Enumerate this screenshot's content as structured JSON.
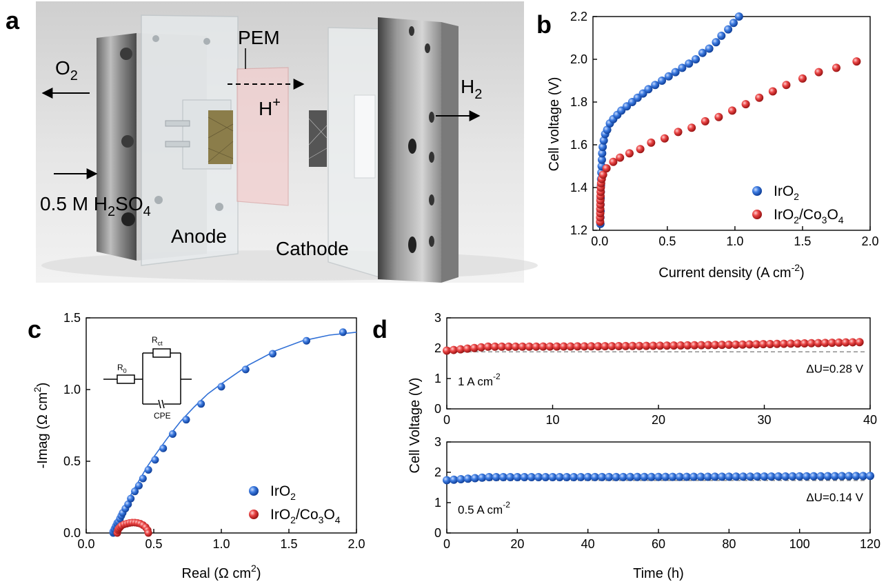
{
  "colors": {
    "blue": "#2f6fd6",
    "red": "#e53a3a",
    "dash": "#777777",
    "axis": "#000000"
  },
  "panel_a": {
    "letter": "a",
    "labels": {
      "o2": "O",
      "o2_sub": "2",
      "pem": "PEM",
      "h_plus": "H",
      "h_plus_sup": "+",
      "h2": "H",
      "h2_sub": "2",
      "electrolyte_pre": "0.5 M H",
      "electrolyte_sub1": "2",
      "electrolyte_mid": "SO",
      "electrolyte_sub2": "4",
      "anode": "Anode",
      "cathode": "Cathode"
    }
  },
  "chart_data": [
    {
      "panel": "b",
      "type": "scatter",
      "xlabel": "Current density (A cm",
      "xlabel_sup": "-2",
      "xlabel_end": ")",
      "ylabel": "Cell voltage (V)",
      "xlim": [
        -0.05,
        2.0
      ],
      "ylim": [
        1.2,
        2.2
      ],
      "xticks": [
        "0.0",
        "0.5",
        "1.0",
        "1.5",
        "2.0"
      ],
      "xtick_values": [
        0,
        0.5,
        1.0,
        1.5,
        2.0
      ],
      "yticks": [
        "1.2",
        "1.4",
        "1.6",
        "1.8",
        "2.0",
        "2.2"
      ],
      "ytick_values": [
        1.2,
        1.4,
        1.6,
        1.8,
        2.0,
        2.2
      ],
      "legend_position": "bottom-right",
      "series": [
        {
          "name": "IrO",
          "name_parts": [
            [
              "IrO",
              ""
            ],
            [
              "2",
              "sub"
            ]
          ],
          "color": "blue",
          "x": [
            0.005,
            0.005,
            0.006,
            0.006,
            0.007,
            0.008,
            0.009,
            0.01,
            0.012,
            0.014,
            0.016,
            0.018,
            0.022,
            0.03,
            0.04,
            0.055,
            0.075,
            0.1,
            0.13,
            0.16,
            0.2,
            0.24,
            0.28,
            0.32,
            0.36,
            0.41,
            0.46,
            0.51,
            0.56,
            0.61,
            0.66,
            0.71,
            0.76,
            0.81,
            0.86,
            0.9,
            0.95,
            0.99,
            1.03
          ],
          "y": [
            1.23,
            1.26,
            1.29,
            1.32,
            1.35,
            1.38,
            1.41,
            1.44,
            1.47,
            1.5,
            1.53,
            1.56,
            1.59,
            1.62,
            1.65,
            1.67,
            1.7,
            1.72,
            1.74,
            1.76,
            1.78,
            1.8,
            1.82,
            1.84,
            1.86,
            1.88,
            1.9,
            1.92,
            1.94,
            1.96,
            1.98,
            2.0,
            2.03,
            2.05,
            2.08,
            2.11,
            2.14,
            2.17,
            2.2
          ]
        },
        {
          "name": "IrO/CoO",
          "name_parts": [
            [
              "IrO",
              ""
            ],
            [
              "2",
              "sub"
            ],
            [
              "/Co",
              ""
            ],
            [
              "3",
              "sub"
            ],
            [
              "O",
              ""
            ],
            [
              "4",
              "sub"
            ]
          ],
          "color": "red",
          "x": [
            0.003,
            0.003,
            0.004,
            0.004,
            0.005,
            0.005,
            0.006,
            0.007,
            0.008,
            0.01,
            0.015,
            0.025,
            0.05,
            0.1,
            0.15,
            0.22,
            0.3,
            0.38,
            0.48,
            0.58,
            0.68,
            0.78,
            0.88,
            0.98,
            1.08,
            1.18,
            1.28,
            1.38,
            1.5,
            1.62,
            1.75,
            1.9
          ],
          "y": [
            1.24,
            1.26,
            1.28,
            1.3,
            1.32,
            1.34,
            1.36,
            1.38,
            1.4,
            1.42,
            1.44,
            1.46,
            1.49,
            1.52,
            1.54,
            1.56,
            1.58,
            1.61,
            1.63,
            1.66,
            1.68,
            1.71,
            1.73,
            1.76,
            1.79,
            1.82,
            1.85,
            1.88,
            1.91,
            1.94,
            1.96,
            1.99
          ]
        }
      ]
    },
    {
      "panel": "c",
      "type": "scatter",
      "xlabel": "Real (Ω cm",
      "xlabel_sup": "2",
      "xlabel_end": ")",
      "ylabel": "-Imag (Ω cm",
      "ylabel_sup": "2",
      "ylabel_end": ")",
      "xlim": [
        0.0,
        2.0
      ],
      "ylim": [
        0.0,
        1.5
      ],
      "xticks": [
        "0.0",
        "0.5",
        "1.0",
        "1.5",
        "2.0"
      ],
      "xtick_values": [
        0,
        0.5,
        1.0,
        1.5,
        2.0
      ],
      "yticks": [
        "0.0",
        "0.5",
        "1.0",
        "1.5"
      ],
      "ytick_values": [
        0,
        0.5,
        1.0,
        1.5
      ],
      "legend_position": "bottom-right",
      "inset": {
        "r0": "R",
        "r0_sub": "0",
        "rct": "R",
        "rct_sub": "ct",
        "cpe": "CPE"
      },
      "series": [
        {
          "name": "IrO",
          "name_parts": [
            [
              "IrO",
              ""
            ],
            [
              "2",
              "sub"
            ]
          ],
          "color": "blue",
          "fit_line": true,
          "fit_x": [
            0.2,
            0.22,
            0.25,
            0.3,
            0.35,
            0.4,
            0.45,
            0.5,
            0.6,
            0.7,
            0.8,
            0.9,
            1.0,
            1.2,
            1.4,
            1.6,
            1.8,
            2.0
          ],
          "fit_y": [
            0.0,
            0.06,
            0.12,
            0.21,
            0.3,
            0.38,
            0.46,
            0.53,
            0.66,
            0.78,
            0.88,
            0.97,
            1.04,
            1.17,
            1.27,
            1.34,
            1.38,
            1.4
          ],
          "x": [
            0.2,
            0.2,
            0.21,
            0.21,
            0.22,
            0.22,
            0.23,
            0.23,
            0.24,
            0.25,
            0.26,
            0.27,
            0.29,
            0.31,
            0.33,
            0.36,
            0.39,
            0.42,
            0.46,
            0.51,
            0.57,
            0.64,
            0.74,
            0.85,
            1.0,
            1.18,
            1.38,
            1.63,
            1.9
          ],
          "y": [
            0.0,
            0.01,
            0.02,
            0.03,
            0.04,
            0.05,
            0.06,
            0.07,
            0.08,
            0.1,
            0.12,
            0.14,
            0.17,
            0.2,
            0.24,
            0.29,
            0.33,
            0.38,
            0.44,
            0.51,
            0.59,
            0.69,
            0.79,
            0.9,
            1.02,
            1.14,
            1.25,
            1.34,
            1.4
          ]
        },
        {
          "name": "IrO/CoO",
          "name_parts": [
            [
              "IrO",
              ""
            ],
            [
              "2",
              "sub"
            ],
            [
              "/Co",
              ""
            ],
            [
              "3",
              "sub"
            ],
            [
              "O",
              ""
            ],
            [
              "4",
              "sub"
            ]
          ],
          "color": "red",
          "x": [
            0.23,
            0.235,
            0.24,
            0.25,
            0.26,
            0.28,
            0.3,
            0.32,
            0.34,
            0.36,
            0.38,
            0.4,
            0.42,
            0.44,
            0.455,
            0.46
          ],
          "y": [
            0.0,
            0.02,
            0.03,
            0.04,
            0.05,
            0.06,
            0.065,
            0.07,
            0.072,
            0.072,
            0.07,
            0.065,
            0.055,
            0.04,
            0.02,
            0.0
          ]
        }
      ]
    },
    {
      "panel": "d-top",
      "type": "scatter",
      "ylabel": "Cell Voltage (V)",
      "xlim": [
        0,
        40
      ],
      "ylim": [
        0,
        3
      ],
      "xticks": [
        "0",
        "10",
        "20",
        "30",
        "40"
      ],
      "xtick_values": [
        0,
        10,
        20,
        30,
        40
      ],
      "yticks": [
        "0",
        "1",
        "2",
        "3"
      ],
      "ytick_values": [
        0,
        1,
        2,
        3
      ],
      "annotation_left": "1 A cm",
      "annotation_left_sup": "-2",
      "annotation_right": "ΔU=0.28 V",
      "reference_line_y": 1.88,
      "series": [
        {
          "name": "",
          "color": "red",
          "x_start": 0,
          "x_end": 39,
          "x_step": 0.65,
          "y_start": 1.92,
          "y_end": 2.2,
          "y_plateau": 2.05
        }
      ]
    },
    {
      "panel": "d-bottom",
      "type": "scatter",
      "xlabel": "Time (h)",
      "xlim": [
        0,
        120
      ],
      "ylim": [
        0,
        3
      ],
      "xticks": [
        "0",
        "20",
        "40",
        "60",
        "80",
        "100",
        "120"
      ],
      "xtick_values": [
        0,
        20,
        40,
        60,
        80,
        100,
        120
      ],
      "yticks": [
        "0",
        "1",
        "2",
        "3"
      ],
      "ytick_values": [
        0,
        1,
        2,
        3
      ],
      "annotation_left": "0.5 A cm",
      "annotation_left_sup": "-2",
      "annotation_right": "ΔU=0.14 V",
      "reference_line_y": 1.73,
      "series": [
        {
          "name": "",
          "color": "blue",
          "x_start": 0,
          "x_end": 120,
          "x_step": 2,
          "y_start": 1.74,
          "y_end": 1.88,
          "y_plateau": 1.84
        }
      ]
    }
  ],
  "panel_letters": {
    "b": "b",
    "c": "c",
    "d": "d"
  }
}
